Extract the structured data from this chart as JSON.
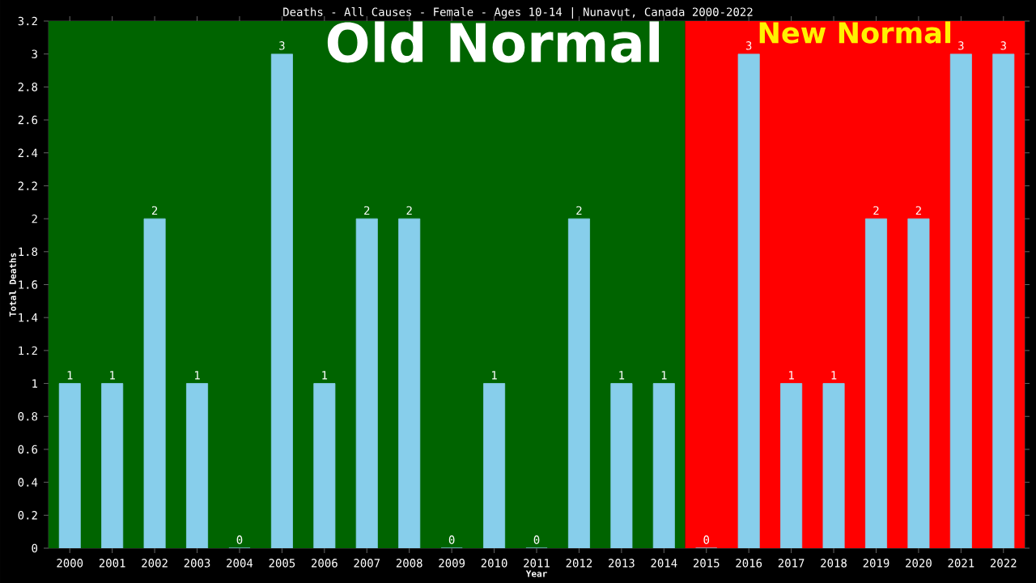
{
  "chart_data": {
    "type": "bar",
    "title": "Deaths - All Causes - Female - Ages 10-14 | Nunavut, Canada 2000-2022",
    "xlabel": "Year",
    "ylabel": "Total Deaths",
    "x": [
      2000,
      2001,
      2002,
      2003,
      2004,
      2005,
      2006,
      2007,
      2008,
      2009,
      2010,
      2011,
      2012,
      2013,
      2014,
      2015,
      2016,
      2017,
      2018,
      2019,
      2020,
      2021,
      2022
    ],
    "values": [
      1,
      1,
      2,
      1,
      0,
      3,
      1,
      2,
      2,
      0,
      1,
      0,
      2,
      1,
      1,
      0,
      3,
      1,
      1,
      2,
      2,
      3,
      3
    ],
    "color": "#87ceeb",
    "data_labels": true,
    "xlim": [
      1999.5,
      2022.5
    ],
    "xticks": [
      2000,
      2001,
      2002,
      2003,
      2004,
      2005,
      2006,
      2007,
      2008,
      2009,
      2010,
      2011,
      2012,
      2013,
      2014,
      2015,
      2016,
      2017,
      2018,
      2019,
      2020,
      2021,
      2022
    ],
    "ylim": [
      0,
      3.2
    ],
    "yticks": [
      0,
      0.2,
      0.4,
      0.6,
      0.8,
      1,
      1.2,
      1.4,
      1.6,
      1.8,
      2,
      2.2,
      2.4,
      2.6,
      2.8,
      3,
      3.2
    ],
    "bands": [
      {
        "axis": "x",
        "from": 1999.5,
        "to": 2014.5,
        "label": "Old Normal",
        "color": "#006400"
      },
      {
        "axis": "x",
        "from": 2014.5,
        "to": 2022.5,
        "label": "New Normal",
        "color": "#ff0000"
      }
    ]
  }
}
